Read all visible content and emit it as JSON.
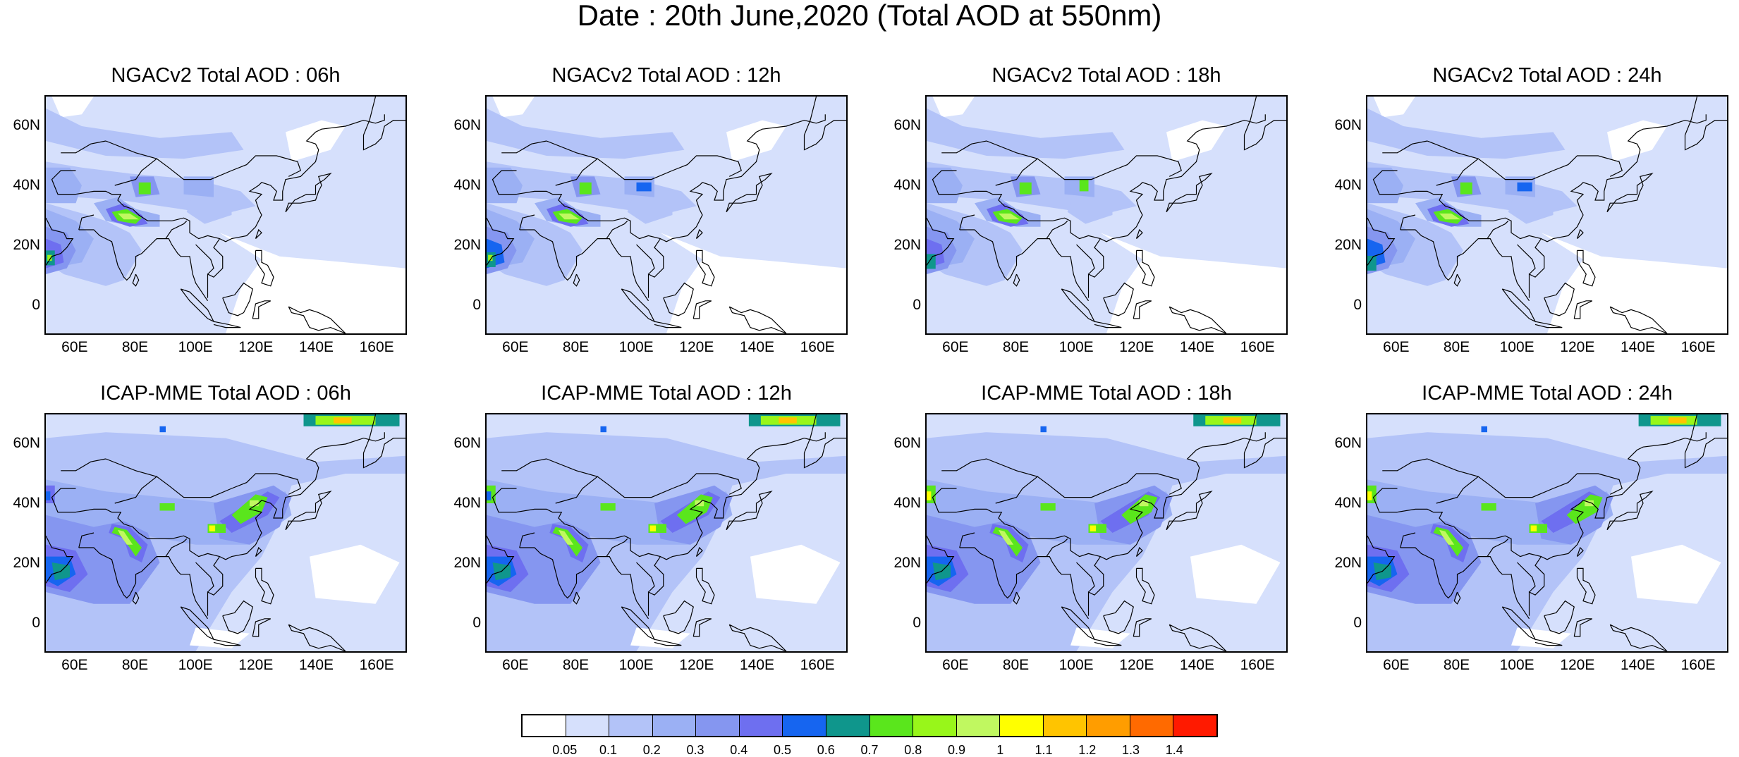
{
  "title": "Date : 20th June,2020 (Total AOD at 550nm)",
  "panels": [
    {
      "title": "NGACv2 Total AOD : 06h",
      "model": "NGACv2"
    },
    {
      "title": "NGACv2 Total AOD : 12h",
      "model": "NGACv2"
    },
    {
      "title": "NGACv2 Total AOD : 18h",
      "model": "NGACv2"
    },
    {
      "title": "NGACv2 Total AOD : 24h",
      "model": "NGACv2"
    },
    {
      "title": "ICAP-MME Total AOD : 06h",
      "model": "ICAP-MME"
    },
    {
      "title": "ICAP-MME Total AOD : 12h",
      "model": "ICAP-MME"
    },
    {
      "title": "ICAP-MME Total AOD : 18h",
      "model": "ICAP-MME"
    },
    {
      "title": "ICAP-MME Total AOD : 24h",
      "model": "ICAP-MME"
    }
  ],
  "axes": {
    "lat_ticks": [
      "60N",
      "40N",
      "20N",
      "0"
    ],
    "lon_ticks": [
      "60E",
      "80E",
      "100E",
      "120E",
      "140E",
      "160E"
    ]
  },
  "colorbar": {
    "colors": [
      "#ffffff",
      "#d6e0fc",
      "#b3c3f8",
      "#9bb0f4",
      "#8596f0",
      "#6e6ff0",
      "#1665f0",
      "#0f968c",
      "#5ae61c",
      "#98f61a",
      "#c0f860",
      "#ffff00",
      "#ffc400",
      "#ff9d00",
      "#ff6a00",
      "#ff1a00"
    ],
    "labels": [
      "0.05",
      "0.1",
      "0.2",
      "0.3",
      "0.4",
      "0.5",
      "0.6",
      "0.7",
      "0.8",
      "0.9",
      "1",
      "1.1",
      "1.2",
      "1.3",
      "1.4"
    ]
  }
}
